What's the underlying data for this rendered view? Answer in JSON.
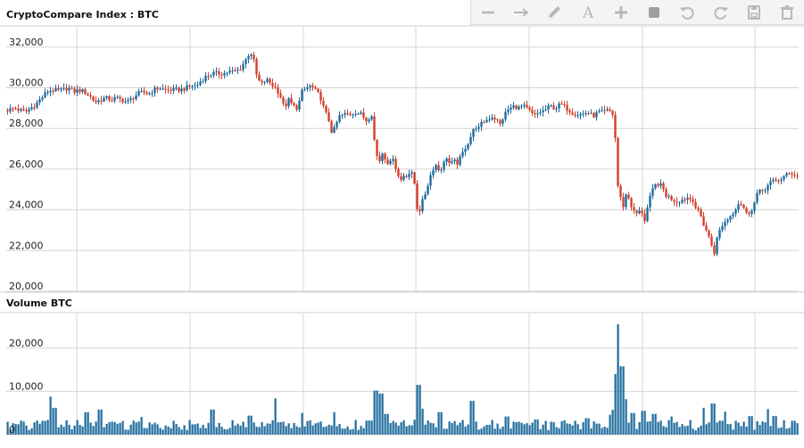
{
  "panels": {
    "price_title": "CryptoCompare Index : BTC",
    "volume_title": "Volume BTC"
  },
  "toolbar": {
    "icons": [
      "minus-icon",
      "arrow-right-icon",
      "pencil-icon",
      "text-icon",
      "plus-icon",
      "square-icon",
      "undo-icon",
      "redo-icon",
      "save-icon",
      "trash-icon"
    ]
  },
  "colors": {
    "up": "#1f6c9e",
    "down": "#d2402b",
    "grid": "#d4d4d4",
    "text": "#222222"
  },
  "chart_data": [
    {
      "type": "candlestick",
      "title": "CryptoCompare Index : BTC",
      "ylim": [
        20000,
        33000
      ],
      "yticks": [
        20000,
        22000,
        24000,
        26000,
        28000,
        30000,
        32000
      ],
      "ytick_labels": [
        "20,000",
        "22,000",
        "24,000",
        "26,000",
        "28,000",
        "30,000",
        "32,000"
      ],
      "grid": true,
      "series": [
        {
          "close_points": [
            [
              0,
              28900
            ],
            [
              8,
              29000
            ],
            [
              14,
              28900
            ],
            [
              20,
              28800
            ],
            [
              26,
              29000
            ],
            [
              32,
              29200
            ],
            [
              38,
              29500
            ],
            [
              44,
              29800
            ],
            [
              50,
              29900
            ],
            [
              56,
              29850
            ],
            [
              62,
              29900
            ],
            [
              68,
              30000
            ],
            [
              74,
              29800
            ],
            [
              80,
              29900
            ],
            [
              86,
              29800
            ],
            [
              92,
              29600
            ],
            [
              98,
              29300
            ],
            [
              104,
              29400
            ],
            [
              110,
              29500
            ],
            [
              116,
              29400
            ],
            [
              122,
              29500
            ],
            [
              128,
              29400
            ],
            [
              134,
              29300
            ],
            [
              140,
              29500
            ],
            [
              146,
              29700
            ],
            [
              152,
              29800
            ],
            [
              158,
              29700
            ],
            [
              164,
              29900
            ],
            [
              170,
              30000
            ],
            [
              176,
              29900
            ],
            [
              182,
              29900
            ],
            [
              188,
              29900
            ],
            [
              194,
              29900
            ],
            [
              200,
              30000
            ],
            [
              206,
              30100
            ],
            [
              212,
              30100
            ],
            [
              218,
              30400
            ],
            [
              224,
              30600
            ],
            [
              230,
              30700
            ],
            [
              236,
              30700
            ],
            [
              242,
              30700
            ],
            [
              248,
              30800
            ],
            [
              254,
              30800
            ],
            [
              260,
              30900
            ],
            [
              266,
              31300
            ],
            [
              272,
              31800
            ],
            [
              276,
              31300
            ],
            [
              280,
              30400
            ],
            [
              285,
              30200
            ],
            [
              290,
              30400
            ],
            [
              295,
              30200
            ],
            [
              300,
              30000
            ],
            [
              305,
              29700
            ],
            [
              310,
              29000
            ],
            [
              315,
              29400
            ],
            [
              320,
              29100
            ],
            [
              325,
              29000
            ],
            [
              330,
              29800
            ],
            [
              335,
              30000
            ],
            [
              340,
              30100
            ],
            [
              346,
              29800
            ],
            [
              350,
              29600
            ],
            [
              355,
              28900
            ],
            [
              360,
              28400
            ],
            [
              364,
              27700
            ],
            [
              368,
              28200
            ],
            [
              372,
              28600
            ],
            [
              378,
              28700
            ],
            [
              384,
              28700
            ],
            [
              390,
              28800
            ],
            [
              396,
              28700
            ],
            [
              402,
              28400
            ],
            [
              408,
              28700
            ],
            [
              412,
              27000
            ],
            [
              416,
              26300
            ],
            [
              420,
              26800
            ],
            [
              424,
              26500
            ],
            [
              428,
              26200
            ],
            [
              432,
              26600
            ],
            [
              436,
              25900
            ],
            [
              440,
              25400
            ],
            [
              444,
              25700
            ],
            [
              448,
              25700
            ],
            [
              452,
              25900
            ],
            [
              456,
              25300
            ],
            [
              460,
              23700
            ],
            [
              464,
              24300
            ],
            [
              468,
              24800
            ],
            [
              472,
              25400
            ],
            [
              476,
              26000
            ],
            [
              480,
              26200
            ],
            [
              484,
              25900
            ],
            [
              488,
              26200
            ],
            [
              492,
              26600
            ],
            [
              496,
              26200
            ],
            [
              500,
              26400
            ],
            [
              504,
              26300
            ],
            [
              508,
              26600
            ],
            [
              512,
              27000
            ],
            [
              516,
              27300
            ],
            [
              520,
              27700
            ],
            [
              524,
              28100
            ],
            [
              528,
              28000
            ],
            [
              532,
              28300
            ],
            [
              536,
              28400
            ],
            [
              540,
              28500
            ],
            [
              544,
              28600
            ],
            [
              548,
              28400
            ],
            [
              552,
              28200
            ],
            [
              556,
              28600
            ],
            [
              560,
              28900
            ],
            [
              564,
              29000
            ],
            [
              568,
              29100
            ],
            [
              572,
              29000
            ],
            [
              578,
              29100
            ],
            [
              584,
              28900
            ],
            [
              590,
              28600
            ],
            [
              596,
              28800
            ],
            [
              602,
              28900
            ],
            [
              608,
              29100
            ],
            [
              614,
              29000
            ],
            [
              620,
              29200
            ],
            [
              626,
              29000
            ],
            [
              632,
              28800
            ],
            [
              638,
              28700
            ],
            [
              644,
              28700
            ],
            [
              650,
              28800
            ],
            [
              656,
              28600
            ],
            [
              662,
              28800
            ],
            [
              668,
              28800
            ],
            [
              674,
              28900
            ],
            [
              680,
              28600
            ],
            [
              683,
              25400
            ],
            [
              686,
              24700
            ],
            [
              690,
              24200
            ],
            [
              694,
              24900
            ],
            [
              698,
              24300
            ],
            [
              702,
              23900
            ],
            [
              706,
              23800
            ],
            [
              710,
              24000
            ],
            [
              714,
              23500
            ],
            [
              718,
              24300
            ],
            [
              722,
              24900
            ],
            [
              726,
              25200
            ],
            [
              730,
              25300
            ],
            [
              734,
              25100
            ],
            [
              738,
              24700
            ],
            [
              742,
              24600
            ],
            [
              746,
              24500
            ],
            [
              750,
              24400
            ],
            [
              756,
              24500
            ],
            [
              762,
              24600
            ],
            [
              768,
              24500
            ],
            [
              772,
              24000
            ],
            [
              776,
              23800
            ],
            [
              780,
              23300
            ],
            [
              784,
              22900
            ],
            [
              788,
              22400
            ],
            [
              792,
              21900
            ],
            [
              796,
              22800
            ],
            [
              800,
              23200
            ],
            [
              804,
              23400
            ],
            [
              808,
              23600
            ],
            [
              812,
              23800
            ],
            [
              816,
              24100
            ],
            [
              820,
              24400
            ],
            [
              824,
              24200
            ],
            [
              828,
              23800
            ],
            [
              832,
              23900
            ],
            [
              836,
              24200
            ],
            [
              840,
              24800
            ],
            [
              844,
              24900
            ],
            [
              848,
              25000
            ],
            [
              852,
              25200
            ],
            [
              856,
              25400
            ],
            [
              860,
              25400
            ],
            [
              866,
              25500
            ],
            [
              872,
              25700
            ],
            [
              878,
              25800
            ],
            [
              884,
              25700
            ],
            [
              889,
              25500
            ]
          ]
        }
      ]
    },
    {
      "type": "bar",
      "title": "Volume BTC",
      "ylim": [
        0,
        28000
      ],
      "yticks": [
        0,
        10000,
        20000
      ],
      "ytick_labels": [
        "0",
        "10,000",
        "20,000"
      ],
      "grid": true,
      "spikes": [
        [
          48,
          8800
        ],
        [
          52,
          6200
        ],
        [
          88,
          5200
        ],
        [
          104,
          5800
        ],
        [
          150,
          4100
        ],
        [
          186,
          3200
        ],
        [
          230,
          5800
        ],
        [
          272,
          4400
        ],
        [
          300,
          8400
        ],
        [
          330,
          5000
        ],
        [
          366,
          5200
        ],
        [
          412,
          10200
        ],
        [
          418,
          9500
        ],
        [
          424,
          4800
        ],
        [
          460,
          11500
        ],
        [
          464,
          6000
        ],
        [
          484,
          5200
        ],
        [
          520,
          7800
        ],
        [
          560,
          4200
        ],
        [
          592,
          3500
        ],
        [
          650,
          3800
        ],
        [
          676,
          4600
        ],
        [
          681,
          14000
        ],
        [
          684,
          25500
        ],
        [
          688,
          15800
        ],
        [
          692,
          8200
        ],
        [
          700,
          5000
        ],
        [
          712,
          5500
        ],
        [
          724,
          4800
        ],
        [
          744,
          4200
        ],
        [
          780,
          6200
        ],
        [
          790,
          7200
        ],
        [
          804,
          5300
        ],
        [
          832,
          4300
        ],
        [
          852,
          5900
        ],
        [
          860,
          4300
        ],
        [
          880,
          3200
        ]
      ],
      "baseline": 2200
    }
  ]
}
